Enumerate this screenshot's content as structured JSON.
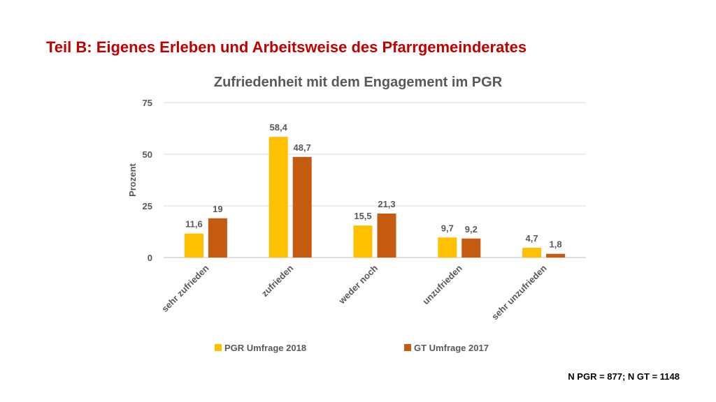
{
  "slide": {
    "title": "Teil B: Eigenes Erleben und Arbeitsweise des Pfarrgemeinderates",
    "footnote": "N PGR = 877; N GT = 1148"
  },
  "chart_data": {
    "type": "bar",
    "title": "Zufriedenheit mit dem Engagement im PGR",
    "xlabel": "",
    "ylabel": "Prozent",
    "ylim": [
      0,
      75
    ],
    "yticks": [
      0,
      25,
      50,
      75
    ],
    "grid": true,
    "legend_position": "bottom",
    "categories": [
      "sehr zufrieden",
      "zufrieden",
      "weder noch",
      "unzufrieden",
      "sehr unzufrieden"
    ],
    "series": [
      {
        "name": "PGR Umfrage 2018",
        "color": "#ffc000",
        "values": [
          11.6,
          58.4,
          15.5,
          9.7,
          4.7
        ],
        "labels": [
          "11,6",
          "58,4",
          "15,5",
          "9,7",
          "4,7"
        ]
      },
      {
        "name": "GT Umfrage 2017",
        "color": "#c55a11",
        "values": [
          19,
          48.7,
          21.3,
          9.2,
          1.8
        ],
        "labels": [
          "19",
          "48,7",
          "21,3",
          "9,2",
          "1,8"
        ]
      }
    ]
  }
}
